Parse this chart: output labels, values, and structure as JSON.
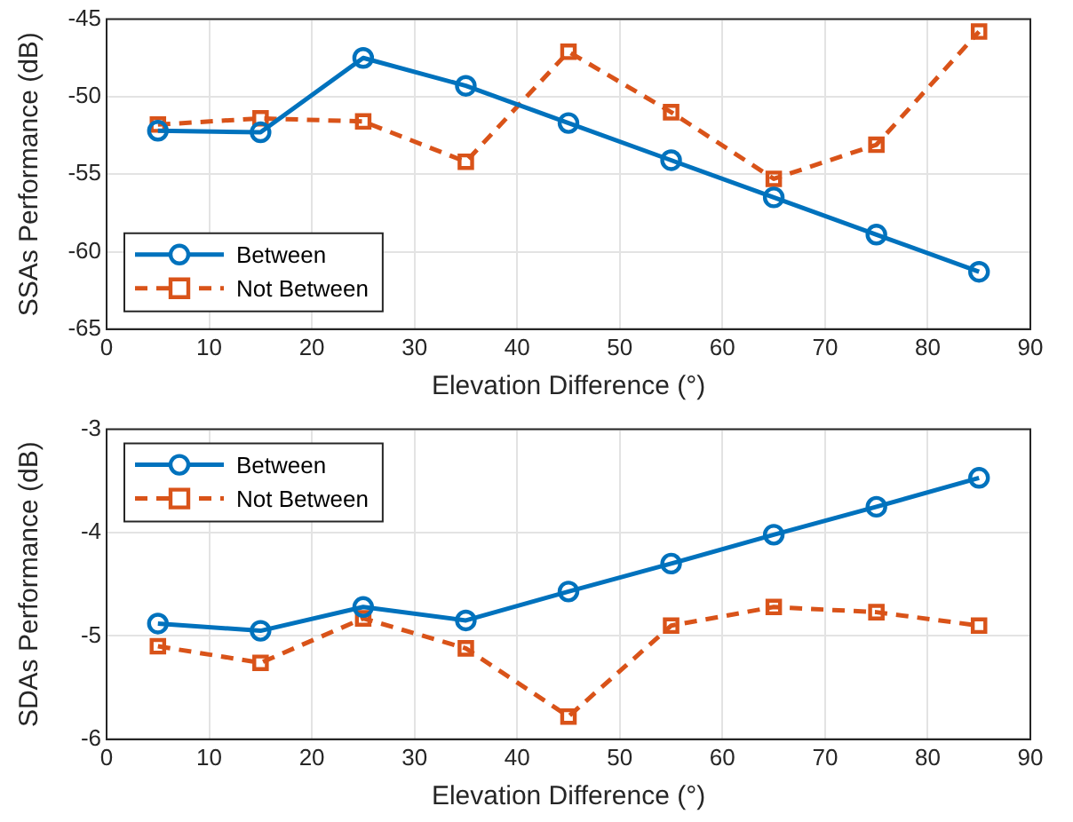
{
  "chart_data": [
    {
      "type": "line",
      "xlabel": "Elevation Difference (°)",
      "ylabel": "SSAs Performance (dB)",
      "x": [
        5,
        15,
        25,
        35,
        45,
        55,
        65,
        75,
        85
      ],
      "xlim": [
        0,
        90
      ],
      "xticks": [
        0,
        10,
        20,
        30,
        40,
        50,
        60,
        70,
        80,
        90
      ],
      "ylim": [
        -65,
        -45
      ],
      "yticks": [
        -65,
        -60,
        -55,
        -50,
        -45
      ],
      "grid": true,
      "legend": "bottom left",
      "series": [
        {
          "name": "Between",
          "color": "#0072bd",
          "marker": "circle",
          "line_style": "solid",
          "values": [
            -52.2,
            -52.3,
            -47.5,
            -49.3,
            -51.7,
            -54.1,
            -56.5,
            -58.9,
            -61.3
          ]
        },
        {
          "name": "Not Between",
          "color": "#d95319",
          "marker": "square",
          "line_style": "dashed",
          "values": [
            -51.8,
            -51.4,
            -51.6,
            -54.2,
            -47.1,
            -51.0,
            -55.3,
            -53.1,
            -45.8
          ]
        }
      ]
    },
    {
      "type": "line",
      "xlabel": "Elevation Difference (°)",
      "ylabel": "SDAs Performance (dB)",
      "x": [
        5,
        15,
        25,
        35,
        45,
        55,
        65,
        75,
        85
      ],
      "xlim": [
        0,
        90
      ],
      "xticks": [
        0,
        10,
        20,
        30,
        40,
        50,
        60,
        70,
        80,
        90
      ],
      "ylim": [
        -6,
        -3
      ],
      "yticks": [
        -6,
        -5,
        -4,
        -3
      ],
      "grid": true,
      "legend": "top left",
      "series": [
        {
          "name": "Between",
          "color": "#0072bd",
          "marker": "circle",
          "line_style": "solid",
          "values": [
            -4.88,
            -4.95,
            -4.72,
            -4.85,
            -4.57,
            -4.3,
            -4.02,
            -3.75,
            -3.47
          ]
        },
        {
          "name": "Not Between",
          "color": "#d95319",
          "marker": "square",
          "line_style": "dashed",
          "values": [
            -5.1,
            -5.26,
            -4.83,
            -5.12,
            -5.78,
            -4.9,
            -4.72,
            -4.77,
            -4.9
          ]
        }
      ]
    }
  ]
}
